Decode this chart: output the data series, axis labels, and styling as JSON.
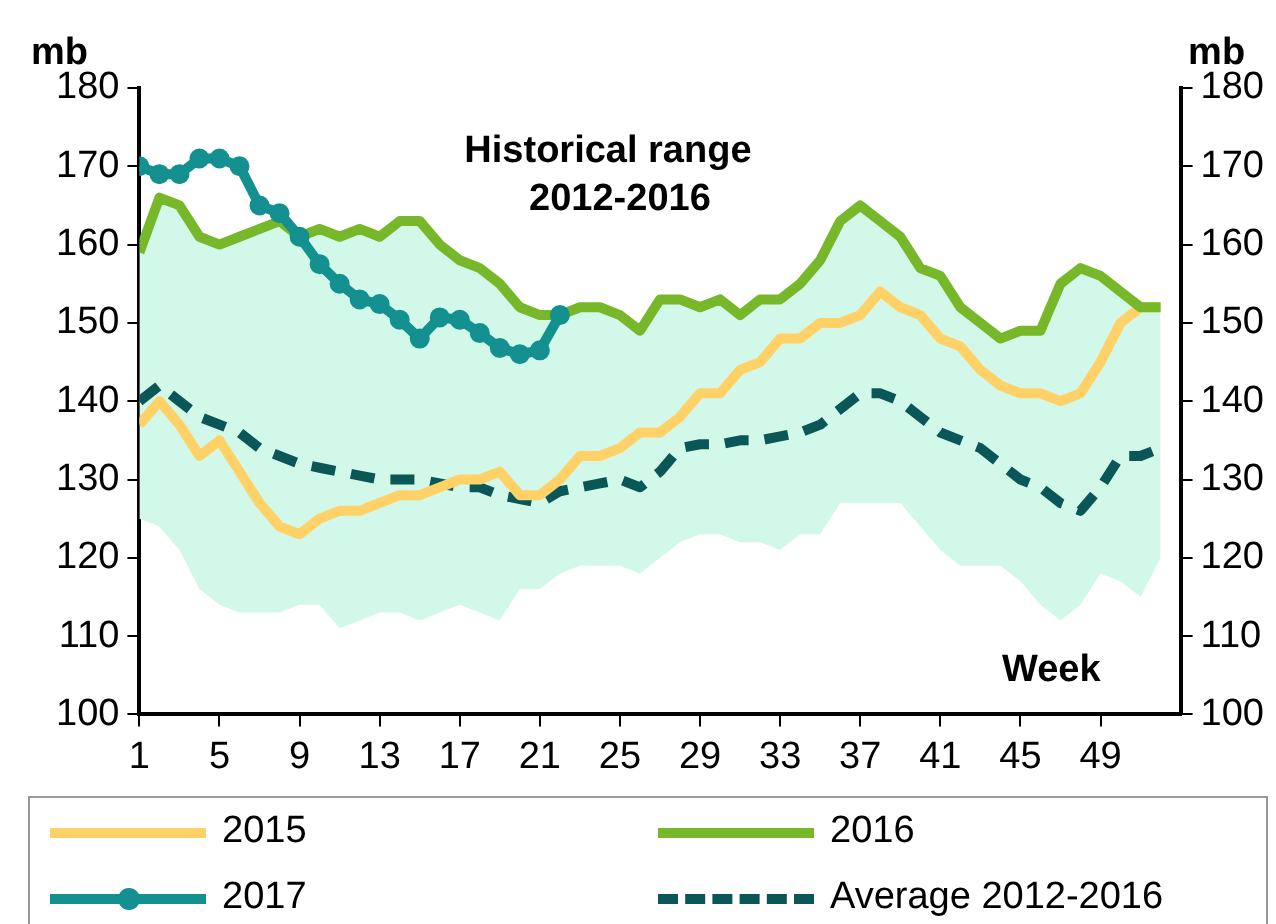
{
  "chart_data": {
    "type": "line",
    "xlabel": "Week",
    "ylabel": "mb",
    "y2label": "mb",
    "annotations": [
      "Historical range 2012-2016"
    ],
    "x": [
      1,
      2,
      3,
      4,
      5,
      6,
      7,
      8,
      9,
      10,
      11,
      12,
      13,
      14,
      15,
      16,
      17,
      18,
      19,
      20,
      21,
      22,
      23,
      24,
      25,
      26,
      27,
      28,
      29,
      30,
      31,
      32,
      33,
      34,
      35,
      36,
      37,
      38,
      39,
      40,
      41,
      42,
      43,
      44,
      45,
      46,
      47,
      48,
      49,
      50,
      51,
      52
    ],
    "xlim": [
      1,
      53
    ],
    "xticks": [
      1,
      5,
      9,
      13,
      17,
      21,
      25,
      29,
      33,
      37,
      41,
      45,
      49
    ],
    "ylim": [
      100,
      180
    ],
    "yticks": [
      100,
      110,
      120,
      130,
      140,
      150,
      160,
      170,
      180
    ],
    "y2lim": [
      100,
      180
    ],
    "y2ticks": [
      100,
      110,
      120,
      130,
      140,
      150,
      160,
      170,
      180
    ],
    "grid": false,
    "legend": "bottom",
    "marker": "none",
    "series": [
      {
        "name": "Average 2012-2016",
        "color": "#0b5656",
        "line_style": "dashed",
        "values": [
          140,
          142,
          140,
          138,
          137,
          136,
          134,
          133,
          132,
          131.5,
          131,
          130.5,
          130,
          130,
          130,
          129.5,
          129,
          129,
          128,
          127.5,
          127,
          128.5,
          129,
          129.5,
          130,
          129,
          131,
          134,
          134.5,
          134.5,
          135,
          135,
          135.5,
          136,
          137,
          139,
          141,
          141,
          140,
          138,
          136,
          135,
          134,
          132,
          130,
          129,
          127,
          126,
          129,
          133,
          133,
          134
        ],
        "lower": [
          125,
          124,
          121,
          116,
          114,
          113,
          113,
          113,
          114,
          114,
          111,
          112,
          113,
          113,
          112,
          113,
          114,
          113,
          112,
          116,
          116,
          118,
          119,
          119,
          119,
          118,
          120,
          122,
          123,
          123,
          122,
          122,
          121,
          123,
          123,
          127,
          127,
          127,
          127,
          124,
          121,
          119,
          119,
          119,
          117,
          114,
          112,
          114,
          118,
          117,
          115,
          120
        ],
        "upper": [
          159,
          166,
          165,
          161,
          160,
          161,
          162,
          163,
          161,
          162,
          161,
          162,
          161,
          163,
          163,
          160,
          158,
          157,
          155,
          152,
          151,
          151,
          152,
          152,
          151,
          149,
          153,
          153,
          152,
          153,
          151,
          153,
          153,
          155,
          158,
          163,
          165,
          163,
          161,
          157,
          156,
          152,
          150,
          148,
          149,
          149,
          155,
          157,
          156,
          154,
          152,
          152
        ]
      },
      {
        "name": "2015",
        "color": "#ffd166",
        "values": [
          137,
          140,
          137,
          133,
          135,
          131,
          127,
          124,
          123,
          125,
          126,
          126,
          127,
          128,
          128,
          129,
          130,
          130,
          131,
          128,
          128,
          130,
          133,
          133,
          134,
          136,
          136,
          138,
          141,
          141,
          144,
          145,
          148,
          148,
          150,
          150,
          151,
          154,
          152,
          151,
          148,
          147,
          144,
          142,
          141,
          141,
          140,
          141,
          145,
          150,
          152,
          152
        ]
      },
      {
        "name": "2016",
        "color": "#77b82a",
        "values": [
          159,
          166,
          165,
          161,
          160,
          161,
          162,
          163,
          161,
          162,
          161,
          162,
          161,
          163,
          163,
          160,
          158,
          157,
          155,
          152,
          151,
          151,
          152,
          152,
          151,
          149,
          153,
          153,
          152,
          153,
          151,
          153,
          153,
          155,
          158,
          163,
          165,
          163,
          161,
          157,
          156,
          152,
          150,
          148,
          149,
          149,
          155,
          157,
          156,
          154,
          152,
          152
        ]
      },
      {
        "name": "2017",
        "color": "#13908f",
        "marker": "circle",
        "values": [
          170,
          169,
          169,
          171,
          171,
          170,
          165,
          164,
          161,
          157.5,
          155,
          153,
          152.4,
          150.4,
          148,
          150.7,
          150.4,
          148.7,
          146.8,
          146,
          146.5,
          151,
          null,
          null,
          null,
          null,
          null,
          null,
          null,
          null,
          null,
          null,
          null,
          null,
          null,
          null,
          null,
          null,
          null,
          null,
          null,
          null,
          null,
          null,
          null,
          null,
          null,
          null,
          null,
          null,
          null,
          null
        ]
      }
    ]
  }
}
